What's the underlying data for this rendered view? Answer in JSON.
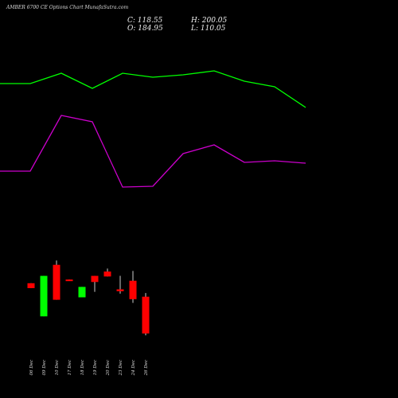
{
  "header": {
    "title": "AMBER 6700  CE Options  Chart MunafaSutra.com",
    "close_label": "C: 118.55",
    "high_label": "H: 200.05",
    "open_label": "O: 184.95",
    "low_label": "L: 110.05"
  },
  "colors": {
    "background": "#000000",
    "upper_line": "#00ff00",
    "lower_line": "#cc00cc",
    "up_candle": "#00ff00",
    "down_candle": "#ff0000",
    "wick": "#ffffff",
    "text": "#dddddd"
  },
  "chart_data": {
    "type": "candlestick",
    "categories": [
      "06 Dec",
      "09 Dec",
      "10 Dec",
      "17 Dec",
      "18 Dec",
      "19 Dec",
      "20 Dec",
      "23 Dec",
      "24 Dec",
      "26 Dec"
    ],
    "candles": [
      {
        "date": "06 Dec",
        "open": 60,
        "high": 60,
        "low": 52,
        "close": 52,
        "direction": "down"
      },
      {
        "date": "09 Dec",
        "open": 6,
        "high": 72,
        "low": 6,
        "close": 72,
        "direction": "up"
      },
      {
        "date": "10 Dec",
        "open": 90,
        "high": 97,
        "low": 33,
        "close": 33,
        "direction": "down"
      },
      {
        "date": "17 Dec",
        "open": 66,
        "high": 66,
        "low": 64,
        "close": 64,
        "direction": "down"
      },
      {
        "date": "18 Dec",
        "open": 37,
        "high": 54,
        "low": 37,
        "close": 54,
        "direction": "up"
      },
      {
        "date": "19 Dec",
        "open": 72,
        "high": 72,
        "low": 46,
        "close": 62,
        "direction": "down"
      },
      {
        "date": "20 Dec",
        "open": 79,
        "high": 84,
        "low": 71,
        "close": 71,
        "direction": "down"
      },
      {
        "date": "23 Dec",
        "open": 50,
        "high": 72,
        "low": 43,
        "close": 47,
        "direction": "down"
      },
      {
        "date": "24 Dec",
        "open": 64,
        "high": 80,
        "low": 28,
        "close": 34,
        "direction": "down"
      },
      {
        "date": "26 Dec",
        "open": 38,
        "high": 44,
        "low": -25,
        "close": -22,
        "direction": "down"
      }
    ],
    "upper_line": [
      395,
      395,
      408,
      389,
      408,
      403,
      406,
      411,
      398,
      391,
      365
    ],
    "lower_line": [
      285,
      285,
      355,
      347,
      265,
      266,
      307,
      318,
      296,
      298,
      295
    ]
  }
}
